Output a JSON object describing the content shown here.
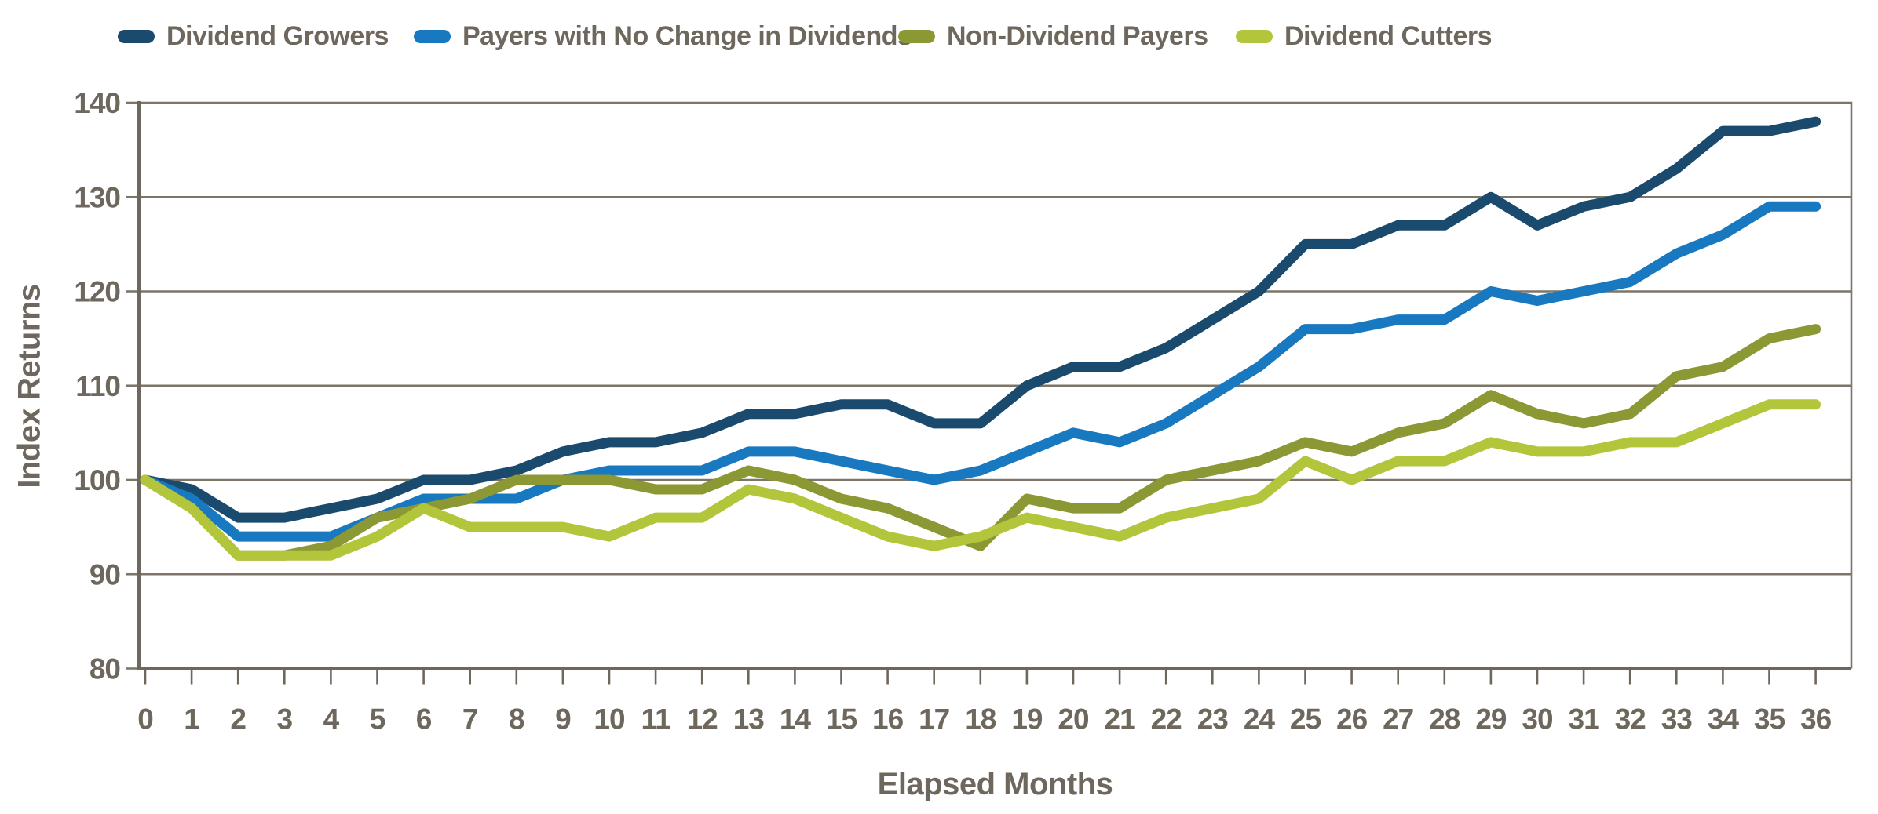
{
  "axes": {
    "x_title": "Elapsed Months",
    "y_title": "Index Returns"
  },
  "colors": {
    "grid": "#7d7668",
    "axis": "#6e675d",
    "text": "#6e675d",
    "background": "#ffffff"
  },
  "chart_data": {
    "type": "line",
    "title": "",
    "xlabel": "Elapsed Months",
    "ylabel": "Index Returns",
    "x": [
      0,
      1,
      2,
      3,
      4,
      5,
      6,
      7,
      8,
      9,
      10,
      11,
      12,
      13,
      14,
      15,
      16,
      17,
      18,
      19,
      20,
      21,
      22,
      23,
      24,
      25,
      26,
      27,
      28,
      29,
      30,
      31,
      32,
      33,
      34,
      35,
      36
    ],
    "xlim": [
      0,
      36
    ],
    "ylim": [
      80,
      140
    ],
    "ytick_step": 10,
    "grid": true,
    "legend_position": "top",
    "series": [
      {
        "name": "Dividend Growers",
        "color": "#1a4a6d",
        "values": [
          100,
          99,
          96,
          96,
          97,
          98,
          100,
          100,
          101,
          103,
          104,
          104,
          105,
          107,
          107,
          108,
          108,
          106,
          106,
          110,
          112,
          112,
          114,
          117,
          120,
          125,
          125,
          127,
          127,
          130,
          127,
          129,
          130,
          133,
          137,
          137,
          138
        ]
      },
      {
        "name": "Payers with No Change in Dividends",
        "color": "#1878c0",
        "values": [
          100,
          98,
          94,
          94,
          94,
          96,
          98,
          98,
          98,
          100,
          101,
          101,
          101,
          103,
          103,
          102,
          101,
          100,
          101,
          103,
          105,
          104,
          106,
          109,
          112,
          116,
          116,
          117,
          117,
          120,
          119,
          120,
          121,
          124,
          126,
          129,
          129
        ]
      },
      {
        "name": "Non-Dividend Payers",
        "color": "#8c9833",
        "values": [
          100,
          97,
          92,
          92,
          93,
          96,
          97,
          98,
          100,
          100,
          100,
          99,
          99,
          101,
          100,
          98,
          97,
          95,
          93,
          98,
          97,
          97,
          100,
          101,
          102,
          104,
          103,
          105,
          106,
          109,
          107,
          106,
          107,
          111,
          112,
          115,
          116
        ]
      },
      {
        "name": "Dividend Cutters",
        "color": "#b3c53a",
        "values": [
          100,
          97,
          92,
          92,
          92,
          94,
          97,
          95,
          95,
          95,
          94,
          96,
          96,
          99,
          98,
          96,
          94,
          93,
          94,
          96,
          95,
          94,
          96,
          97,
          98,
          102,
          100,
          102,
          102,
          104,
          103,
          103,
          104,
          104,
          106,
          108,
          108
        ]
      }
    ]
  },
  "legend_x_positions": [
    150,
    527,
    1144,
    1574
  ]
}
